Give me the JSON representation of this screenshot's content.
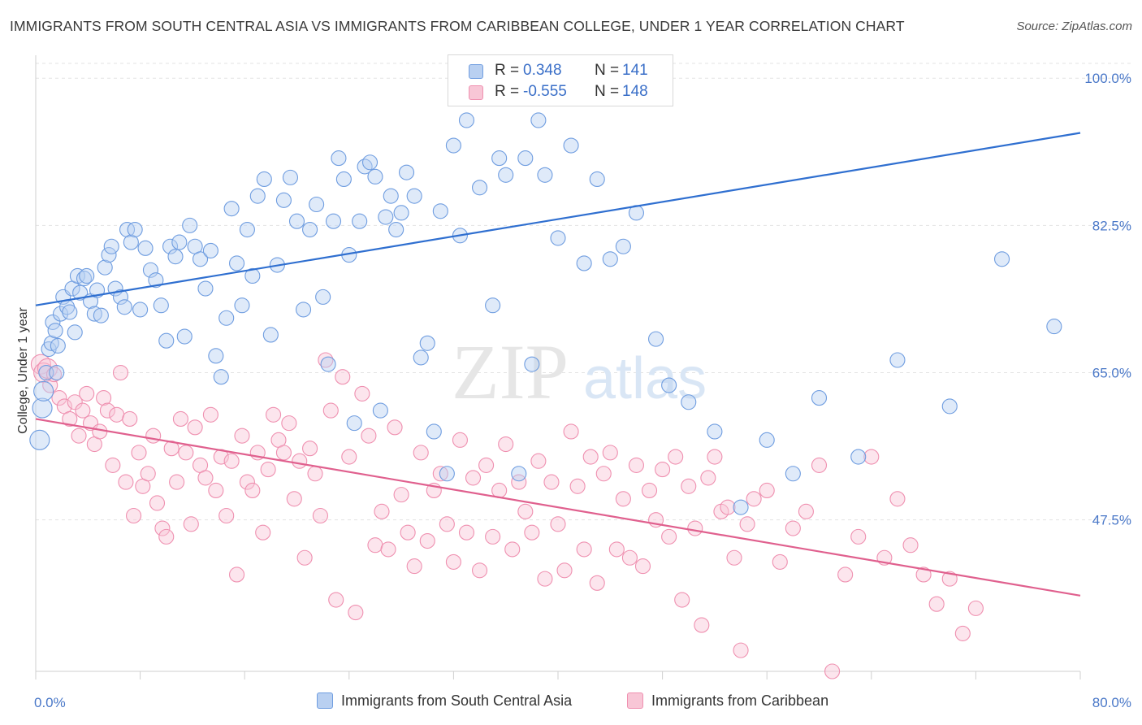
{
  "title": "IMMIGRANTS FROM SOUTH CENTRAL ASIA VS IMMIGRANTS FROM CARIBBEAN COLLEGE, UNDER 1 YEAR CORRELATION CHART",
  "source": "Source: ZipAtlas.com",
  "watermark": {
    "zip": "ZIP",
    "atlas": "atlas"
  },
  "legend": {
    "series1": {
      "r_label": "R =",
      "r_value": "0.348",
      "n_label": "N =",
      "n_value": "141"
    },
    "series2": {
      "r_label": "R =",
      "r_value": "-0.555",
      "n_label": "N =",
      "n_value": "148"
    }
  },
  "colors": {
    "blue": "#6f9de0",
    "pink": "#ef90b0",
    "blue_line": "#2f6fd0",
    "pink_line": "#e0608e"
  },
  "chart_data": {
    "type": "scatter",
    "title": "IMMIGRANTS FROM SOUTH CENTRAL ASIA VS IMMIGRANTS FROM CARIBBEAN COLLEGE, UNDER 1 YEAR CORRELATION CHART",
    "xlabel": "",
    "ylabel": "College, Under 1 year",
    "xlim": [
      0,
      80
    ],
    "ylim": [
      29.5,
      103.5
    ],
    "x_tick_labels": [
      "0.0%",
      "80.0%"
    ],
    "y_ticks": [
      47.5,
      65.0,
      82.5,
      100.0
    ],
    "y_tick_labels": [
      "47.5%",
      "65.0%",
      "82.5%",
      "100.0%"
    ],
    "legend": [
      "Immigrants from South Central Asia",
      "Immigrants from Caribbean"
    ],
    "series": [
      {
        "name": "Immigrants from South Central Asia",
        "r": 0.348,
        "n": 141,
        "trend": {
          "x": [
            0,
            80
          ],
          "y": [
            73.0,
            93.5
          ]
        },
        "points": [
          [
            0.3,
            57.0
          ],
          [
            0.5,
            60.8
          ],
          [
            0.6,
            62.8
          ],
          [
            0.8,
            65.0
          ],
          [
            1.0,
            67.8
          ],
          [
            1.2,
            68.5
          ],
          [
            1.3,
            71.0
          ],
          [
            1.5,
            70.0
          ],
          [
            1.6,
            65.0
          ],
          [
            1.7,
            68.2
          ],
          [
            1.9,
            72.0
          ],
          [
            2.1,
            74.0
          ],
          [
            2.4,
            72.8
          ],
          [
            2.6,
            72.2
          ],
          [
            2.8,
            75.0
          ],
          [
            3.0,
            69.8
          ],
          [
            3.2,
            76.5
          ],
          [
            3.4,
            74.5
          ],
          [
            3.7,
            76.2
          ],
          [
            3.9,
            76.5
          ],
          [
            4.2,
            73.5
          ],
          [
            4.5,
            72.0
          ],
          [
            4.7,
            74.8
          ],
          [
            5.0,
            71.8
          ],
          [
            5.3,
            77.5
          ],
          [
            5.6,
            79.0
          ],
          [
            5.8,
            80.0
          ],
          [
            6.1,
            75.0
          ],
          [
            6.5,
            74.0
          ],
          [
            6.8,
            72.8
          ],
          [
            7.0,
            82.0
          ],
          [
            7.3,
            80.5
          ],
          [
            7.6,
            82.0
          ],
          [
            8.0,
            72.5
          ],
          [
            8.4,
            79.8
          ],
          [
            8.8,
            77.2
          ],
          [
            9.2,
            76.0
          ],
          [
            9.6,
            73.0
          ],
          [
            10.0,
            68.8
          ],
          [
            10.3,
            80.0
          ],
          [
            10.7,
            78.8
          ],
          [
            11.0,
            80.5
          ],
          [
            11.4,
            69.3
          ],
          [
            11.8,
            82.5
          ],
          [
            12.2,
            80.0
          ],
          [
            12.6,
            78.5
          ],
          [
            13.0,
            75.0
          ],
          [
            13.4,
            79.5
          ],
          [
            13.8,
            67.0
          ],
          [
            14.2,
            64.5
          ],
          [
            14.6,
            71.5
          ],
          [
            15.0,
            84.5
          ],
          [
            15.4,
            78.0
          ],
          [
            15.8,
            73.0
          ],
          [
            16.2,
            82.0
          ],
          [
            16.6,
            76.5
          ],
          [
            17.0,
            86.0
          ],
          [
            17.5,
            88.0
          ],
          [
            18.0,
            69.5
          ],
          [
            18.5,
            77.8
          ],
          [
            19.0,
            85.5
          ],
          [
            19.5,
            88.2
          ],
          [
            20.0,
            83.0
          ],
          [
            20.5,
            72.5
          ],
          [
            21.0,
            82.0
          ],
          [
            21.5,
            85.0
          ],
          [
            22.0,
            74.0
          ],
          [
            22.4,
            66.0
          ],
          [
            22.8,
            83.0
          ],
          [
            23.2,
            90.5
          ],
          [
            23.6,
            88.0
          ],
          [
            24.0,
            79.0
          ],
          [
            24.4,
            59.0
          ],
          [
            24.8,
            83.0
          ],
          [
            25.2,
            89.5
          ],
          [
            25.6,
            90.0
          ],
          [
            26.0,
            88.3
          ],
          [
            26.4,
            60.5
          ],
          [
            26.8,
            83.5
          ],
          [
            27.2,
            86.0
          ],
          [
            27.6,
            82.0
          ],
          [
            28.0,
            84.0
          ],
          [
            28.4,
            88.8
          ],
          [
            29.0,
            86.0
          ],
          [
            29.5,
            66.8
          ],
          [
            30.0,
            68.5
          ],
          [
            30.5,
            58.0
          ],
          [
            31.0,
            84.2
          ],
          [
            31.5,
            53.0
          ],
          [
            32.0,
            92.0
          ],
          [
            32.5,
            81.3
          ],
          [
            33.0,
            95.0
          ],
          [
            34.0,
            87.0
          ],
          [
            35.0,
            73.0
          ],
          [
            35.5,
            90.5
          ],
          [
            36.0,
            88.5
          ],
          [
            37.0,
            53.0
          ],
          [
            37.5,
            90.5
          ],
          [
            38.0,
            66.0
          ],
          [
            38.5,
            95.0
          ],
          [
            39.0,
            88.5
          ],
          [
            40.0,
            81.0
          ],
          [
            41.0,
            92.0
          ],
          [
            42.0,
            78.0
          ],
          [
            43.0,
            88.0
          ],
          [
            44.0,
            78.5
          ],
          [
            45.0,
            80.0
          ],
          [
            46.0,
            84.0
          ],
          [
            47.5,
            69.0
          ],
          [
            48.5,
            63.5
          ],
          [
            50.0,
            61.5
          ],
          [
            52.0,
            58.0
          ],
          [
            54.0,
            49.0
          ],
          [
            56.0,
            57.0
          ],
          [
            58.0,
            53.0
          ],
          [
            60.0,
            62.0
          ],
          [
            63.0,
            55.0
          ],
          [
            66.0,
            66.5
          ],
          [
            70.0,
            61.0
          ],
          [
            74.0,
            78.5
          ],
          [
            78.0,
            70.5
          ]
        ]
      },
      {
        "name": "Immigrants from Caribbean",
        "r": -0.555,
        "n": 148,
        "trend": {
          "x": [
            0,
            80
          ],
          "y": [
            59.5,
            38.5
          ]
        },
        "points": [
          [
            0.4,
            66.0
          ],
          [
            0.6,
            65.0
          ],
          [
            0.9,
            65.5
          ],
          [
            1.1,
            63.5
          ],
          [
            1.4,
            64.8
          ],
          [
            1.8,
            62.0
          ],
          [
            2.2,
            61.0
          ],
          [
            2.6,
            59.5
          ],
          [
            3.0,
            61.5
          ],
          [
            3.3,
            57.5
          ],
          [
            3.6,
            60.5
          ],
          [
            3.9,
            62.5
          ],
          [
            4.2,
            59.0
          ],
          [
            4.5,
            56.5
          ],
          [
            4.9,
            58.0
          ],
          [
            5.2,
            62.0
          ],
          [
            5.5,
            60.5
          ],
          [
            5.9,
            54.0
          ],
          [
            6.2,
            60.0
          ],
          [
            6.5,
            65.0
          ],
          [
            6.9,
            52.0
          ],
          [
            7.2,
            59.5
          ],
          [
            7.5,
            48.0
          ],
          [
            7.9,
            55.5
          ],
          [
            8.2,
            51.5
          ],
          [
            8.6,
            53.0
          ],
          [
            9.0,
            57.5
          ],
          [
            9.3,
            49.5
          ],
          [
            9.7,
            46.5
          ],
          [
            10.0,
            45.5
          ],
          [
            10.4,
            56.0
          ],
          [
            10.8,
            52.0
          ],
          [
            11.1,
            59.5
          ],
          [
            11.5,
            55.5
          ],
          [
            11.9,
            47.0
          ],
          [
            12.2,
            58.5
          ],
          [
            12.6,
            54.0
          ],
          [
            13.0,
            52.5
          ],
          [
            13.4,
            60.0
          ],
          [
            13.8,
            51.0
          ],
          [
            14.2,
            55.0
          ],
          [
            14.6,
            48.0
          ],
          [
            15.0,
            54.5
          ],
          [
            15.4,
            41.0
          ],
          [
            15.8,
            57.5
          ],
          [
            16.2,
            52.0
          ],
          [
            16.6,
            51.0
          ],
          [
            17.0,
            55.5
          ],
          [
            17.4,
            46.0
          ],
          [
            17.8,
            53.5
          ],
          [
            18.2,
            60.0
          ],
          [
            18.6,
            57.0
          ],
          [
            19.0,
            55.5
          ],
          [
            19.4,
            59.0
          ],
          [
            19.8,
            50.0
          ],
          [
            20.2,
            54.5
          ],
          [
            20.6,
            43.0
          ],
          [
            21.0,
            56.0
          ],
          [
            21.4,
            53.0
          ],
          [
            21.8,
            48.0
          ],
          [
            22.2,
            66.5
          ],
          [
            22.6,
            60.5
          ],
          [
            23.0,
            38.0
          ],
          [
            23.5,
            64.5
          ],
          [
            24.0,
            55.0
          ],
          [
            24.5,
            36.5
          ],
          [
            25.0,
            62.5
          ],
          [
            25.5,
            57.5
          ],
          [
            26.0,
            44.5
          ],
          [
            26.5,
            48.5
          ],
          [
            27.0,
            44.0
          ],
          [
            27.5,
            58.5
          ],
          [
            28.0,
            50.5
          ],
          [
            28.5,
            46.0
          ],
          [
            29.0,
            42.0
          ],
          [
            29.5,
            55.5
          ],
          [
            30.0,
            45.0
          ],
          [
            30.5,
            51.0
          ],
          [
            31.0,
            53.0
          ],
          [
            31.5,
            47.0
          ],
          [
            32.0,
            42.5
          ],
          [
            32.5,
            57.0
          ],
          [
            33.0,
            46.0
          ],
          [
            33.5,
            52.5
          ],
          [
            34.0,
            41.5
          ],
          [
            34.5,
            54.0
          ],
          [
            35.0,
            45.5
          ],
          [
            35.5,
            51.0
          ],
          [
            36.0,
            56.5
          ],
          [
            36.5,
            44.0
          ],
          [
            37.0,
            52.0
          ],
          [
            37.5,
            48.5
          ],
          [
            38.0,
            46.0
          ],
          [
            38.5,
            54.5
          ],
          [
            39.0,
            40.5
          ],
          [
            39.5,
            52.0
          ],
          [
            40.0,
            47.0
          ],
          [
            40.5,
            41.5
          ],
          [
            41.0,
            58.0
          ],
          [
            41.5,
            51.5
          ],
          [
            42.0,
            44.0
          ],
          [
            42.5,
            55.0
          ],
          [
            43.0,
            40.0
          ],
          [
            43.5,
            53.0
          ],
          [
            44.0,
            55.5
          ],
          [
            44.5,
            44.0
          ],
          [
            45.0,
            50.0
          ],
          [
            45.5,
            43.0
          ],
          [
            46.0,
            54.0
          ],
          [
            46.5,
            42.0
          ],
          [
            47.0,
            51.0
          ],
          [
            47.5,
            47.5
          ],
          [
            48.0,
            53.5
          ],
          [
            48.5,
            45.5
          ],
          [
            49.0,
            55.0
          ],
          [
            49.5,
            38.0
          ],
          [
            50.0,
            51.5
          ],
          [
            50.5,
            46.5
          ],
          [
            51.0,
            35.0
          ],
          [
            51.5,
            52.5
          ],
          [
            52.0,
            55.0
          ],
          [
            52.5,
            48.5
          ],
          [
            53.0,
            49.0
          ],
          [
            53.5,
            43.0
          ],
          [
            54.0,
            32.0
          ],
          [
            54.5,
            47.0
          ],
          [
            55.0,
            50.0
          ],
          [
            56.0,
            51.0
          ],
          [
            57.0,
            42.5
          ],
          [
            58.0,
            46.5
          ],
          [
            59.0,
            48.5
          ],
          [
            60.0,
            54.0
          ],
          [
            61.0,
            29.5
          ],
          [
            62.0,
            41.0
          ],
          [
            63.0,
            45.5
          ],
          [
            64.0,
            55.0
          ],
          [
            65.0,
            43.0
          ],
          [
            66.0,
            50.0
          ],
          [
            67.0,
            44.5
          ],
          [
            68.0,
            41.0
          ],
          [
            69.0,
            37.5
          ],
          [
            70.0,
            40.5
          ],
          [
            71.0,
            34.0
          ],
          [
            72.0,
            37.0
          ]
        ]
      }
    ]
  }
}
